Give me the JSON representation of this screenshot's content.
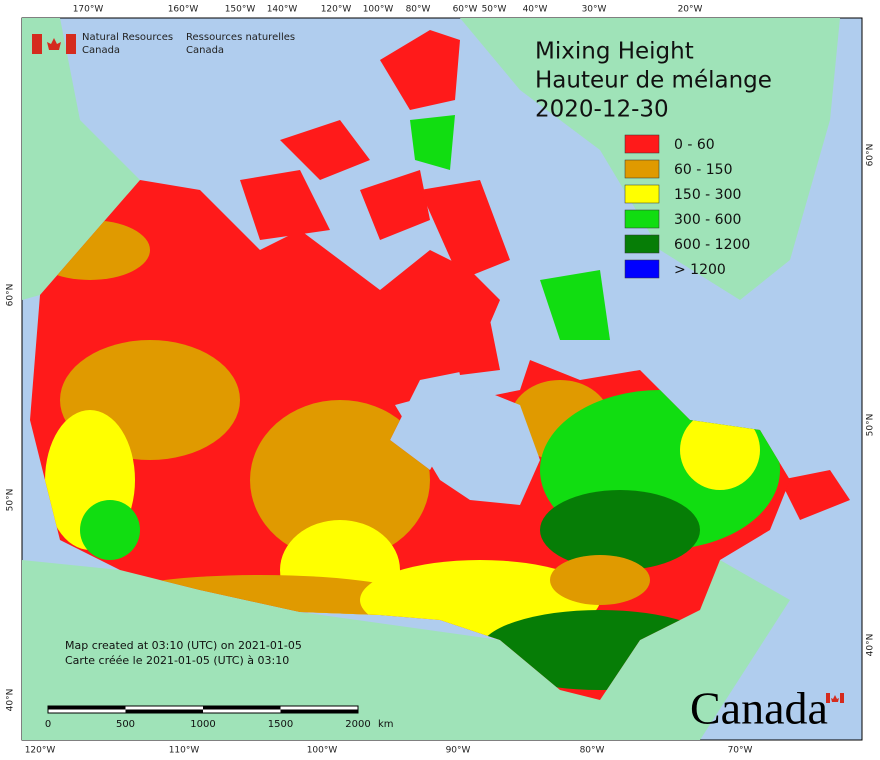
{
  "header": {
    "org_en": [
      "Natural Resources",
      "Canada"
    ],
    "org_fr": [
      "Ressources naturelles",
      "Canada"
    ]
  },
  "title": [
    "Mixing Height",
    "Hauteur de mélange",
    "2020-12-30"
  ],
  "legend": [
    {
      "label": "0 - 60",
      "color": "#ff1a1a"
    },
    {
      "label": "60 - 150",
      "color": "#e09a00"
    },
    {
      "label": "150 - 300",
      "color": "#ffff00"
    },
    {
      "label": "300 - 600",
      "color": "#11dd11"
    },
    {
      "label": "600 - 1200",
      "color": "#067d06"
    },
    {
      "label": "> 1200",
      "color": "#0000ff"
    }
  ],
  "graticule": {
    "top": [
      "170°W",
      "160°W",
      "150°W",
      "140°W",
      "120°W",
      "100°W",
      "80°W",
      "60°W",
      "50°W",
      "40°W",
      "30°W",
      "20°W"
    ],
    "bottom": [
      "120°W",
      "110°W",
      "100°W",
      "90°W",
      "80°W",
      "70°W"
    ],
    "left": [
      "60°N",
      "50°N",
      "40°N"
    ],
    "right": [
      "60°N",
      "50°N",
      "40°N"
    ]
  },
  "credits": [
    "Map created at 03:10 (UTC) on 2021-01-05",
    "Carte créée le 2021-01-05 (UTC) à 03:10"
  ],
  "scale": {
    "ticks": [
      "0",
      "500",
      "1000",
      "1500",
      "2000"
    ],
    "unit": "km"
  },
  "wordmark": "Canada"
}
